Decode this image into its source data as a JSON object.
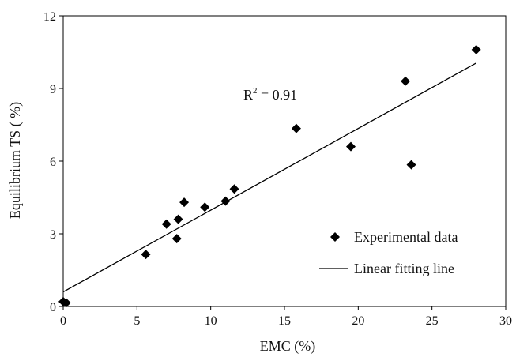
{
  "chart_data": {
    "type": "scatter",
    "title": "",
    "xlabel": "EMC (%)",
    "ylabel": "Equilibrium TS ( %)",
    "xlim": [
      0,
      30
    ],
    "ylim": [
      0,
      12
    ],
    "xticks": [
      0,
      5,
      10,
      15,
      20,
      25,
      30
    ],
    "yticks": [
      0,
      3,
      6,
      9,
      12
    ],
    "grid": false,
    "legend_position": "bottom-right",
    "series": [
      {
        "name": "Experimental data",
        "kind": "scatter",
        "marker": "diamond",
        "color": "#000000",
        "points": [
          {
            "x": 0.0,
            "y": 0.2
          },
          {
            "x": 0.2,
            "y": 0.15
          },
          {
            "x": 5.6,
            "y": 2.15
          },
          {
            "x": 7.0,
            "y": 3.4
          },
          {
            "x": 7.7,
            "y": 2.8
          },
          {
            "x": 7.8,
            "y": 3.6
          },
          {
            "x": 8.2,
            "y": 4.3
          },
          {
            "x": 9.6,
            "y": 4.1
          },
          {
            "x": 11.0,
            "y": 4.35
          },
          {
            "x": 11.6,
            "y": 4.85
          },
          {
            "x": 15.8,
            "y": 7.35
          },
          {
            "x": 19.5,
            "y": 6.6
          },
          {
            "x": 23.2,
            "y": 9.3
          },
          {
            "x": 23.6,
            "y": 5.85
          },
          {
            "x": 28.0,
            "y": 10.6
          }
        ]
      },
      {
        "name": "Linear fitting line",
        "kind": "line",
        "color": "#000000",
        "points": [
          {
            "x": 0.0,
            "y": 0.6
          },
          {
            "x": 28.0,
            "y": 10.05
          }
        ]
      }
    ],
    "annotations": [
      {
        "text_base": "R",
        "text_sup": "2",
        "text_rest": " = 0.91",
        "x": 12.0,
        "y": 8.55
      }
    ]
  }
}
